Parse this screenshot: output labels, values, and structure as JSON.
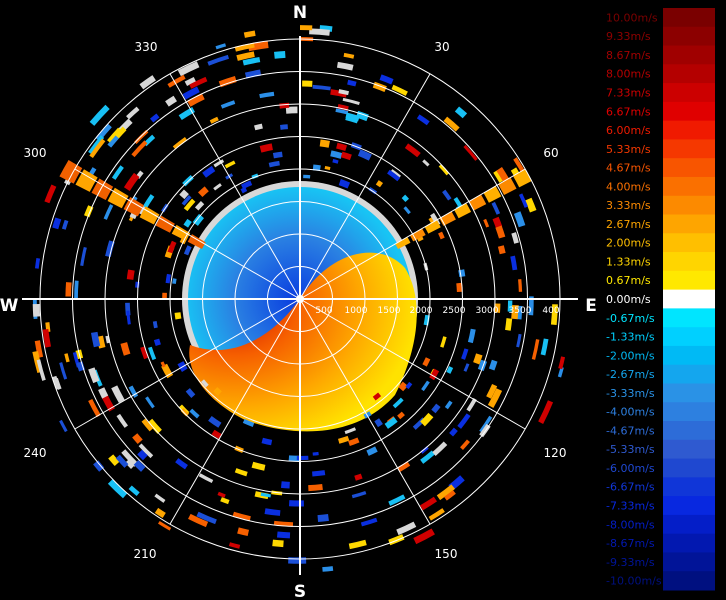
{
  "compass": {
    "north": "N",
    "south": "S",
    "east": "E",
    "west": "W"
  },
  "azimuth_labels": [
    "30",
    "60",
    "120",
    "150",
    "210",
    "240",
    "300",
    "330"
  ],
  "range_labels": [
    "500",
    "1000",
    "1500",
    "2000",
    "2500",
    "3000",
    "3500",
    "400"
  ],
  "colorbar": {
    "labels": [
      "10.00m/s",
      "9.33m/s",
      "8.67m/s",
      "8.00m/s",
      "7.33m/s",
      "6.67m/s",
      "6.00m/s",
      "5.33m/s",
      "4.67m/s",
      "4.00m/s",
      "3.33m/s",
      "2.67m/s",
      "2.00m/s",
      "1.33m/s",
      "0.67m/s",
      "0.00m/s",
      "-0.67m/s",
      "-1.33m/s",
      "-2.00m/s",
      "-2.67m/s",
      "-3.33m/s",
      "-4.00m/s",
      "-4.67m/s",
      "-5.33m/s",
      "-6.00m/s",
      "-6.67m/s",
      "-7.33m/s",
      "-8.00m/s",
      "-8.67m/s",
      "-9.33m/s",
      "-10.00m/s"
    ],
    "colors": [
      "#7a0000",
      "#8c0000",
      "#a00000",
      "#b40000",
      "#cc0000",
      "#e00000",
      "#f01a00",
      "#f53800",
      "#f85500",
      "#fa7000",
      "#fc8a00",
      "#fea500",
      "#ffbf00",
      "#ffd500",
      "#ffe800",
      "#ffffff",
      "#00e5ff",
      "#00d0ff",
      "#00baf5",
      "#14a6ee",
      "#2a92e6",
      "#2d80e0",
      "#2d6cd8",
      "#2f5ad0",
      "#1f48d0",
      "#1036d8",
      "#0828e0",
      "#041ec8",
      "#0218b0",
      "#011498",
      "#001080"
    ]
  }
}
